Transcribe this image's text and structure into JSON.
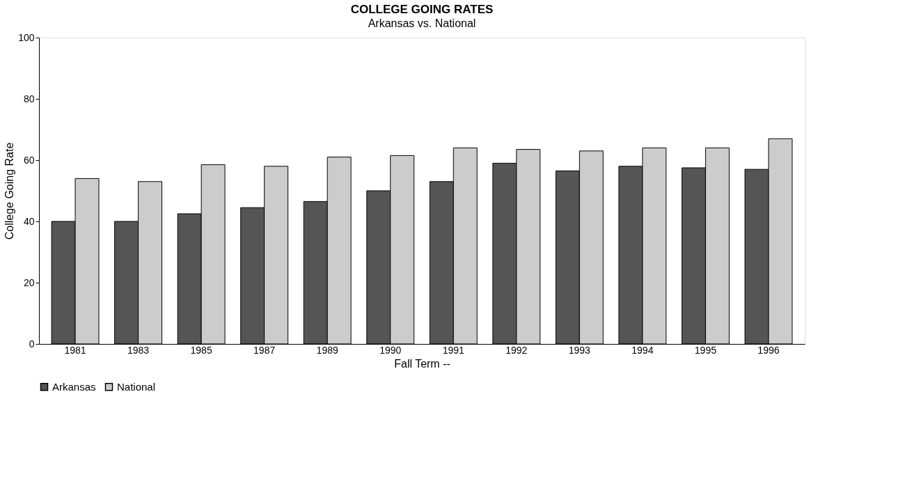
{
  "chart_data": {
    "type": "bar",
    "title": "COLLEGE GOING RATES",
    "subtitle": "Arkansas vs. National",
    "xlabel": "Fall Term --",
    "ylabel": "College Going Rate",
    "categories": [
      "1981",
      "1983",
      "1985",
      "1987",
      "1989",
      "1990",
      "1991",
      "1992",
      "1993",
      "1994",
      "1995",
      "1996"
    ],
    "series": [
      {
        "name": "Arkansas",
        "color": "#555555",
        "values": [
          40,
          40,
          42.5,
          44.5,
          46.5,
          50,
          53,
          59,
          56.5,
          58,
          57.5,
          57
        ]
      },
      {
        "name": "National",
        "color": "#cccccc",
        "values": [
          54,
          53,
          58.5,
          58,
          61,
          61.5,
          64,
          63.5,
          63,
          64,
          64,
          67
        ]
      }
    ],
    "ylim": [
      0,
      100
    ],
    "yticks": [
      0,
      20,
      40,
      60,
      80,
      100
    ],
    "grid": false,
    "legend": "bottom"
  }
}
